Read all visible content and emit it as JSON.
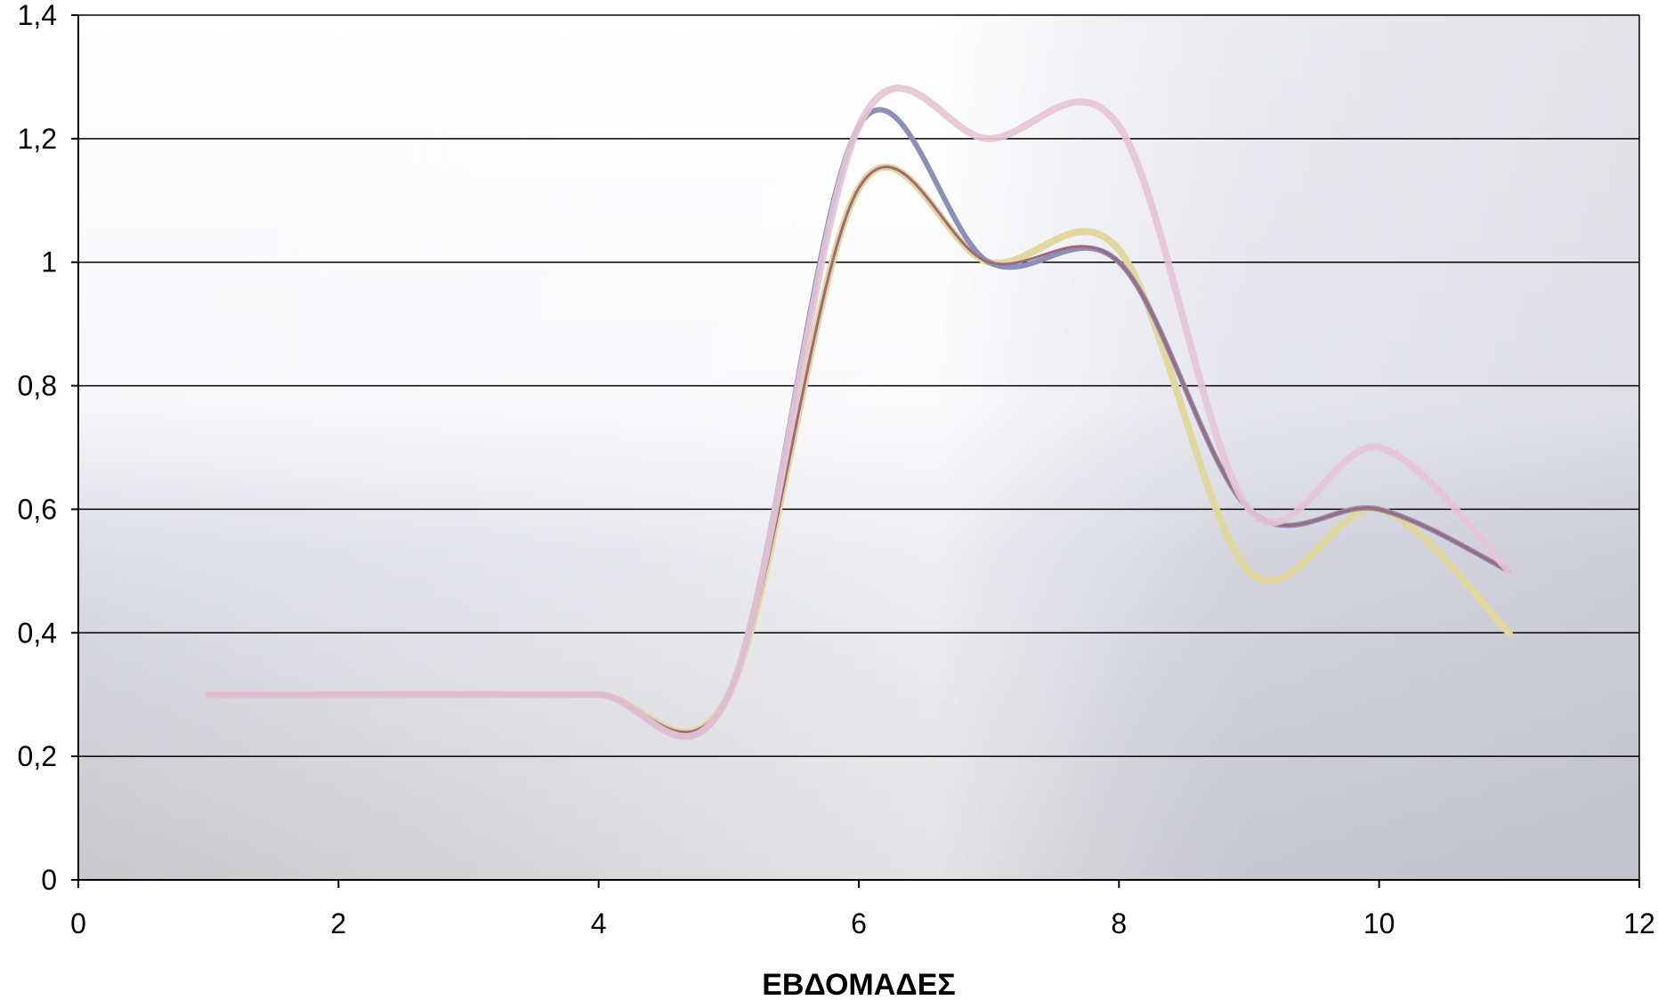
{
  "chart_data": {
    "type": "line",
    "xlabel": "ΕΒΔΟΜΑΔΕΣ",
    "ylabel": "",
    "xlim": [
      0,
      12
    ],
    "ylim": [
      0,
      1.4
    ],
    "x_ticks": [
      0,
      2,
      4,
      6,
      8,
      10,
      12
    ],
    "x_tick_labels": [
      "0",
      "2",
      "4",
      "6",
      "8",
      "10",
      "12"
    ],
    "y_ticks": [
      0,
      0.2,
      0.4,
      0.6,
      0.8,
      1,
      1.2,
      1.4
    ],
    "y_tick_labels": [
      "0",
      "0,2",
      "0,4",
      "0,6",
      "0,8",
      "1",
      "1,2",
      "1,4"
    ],
    "grid": true,
    "legend": "none",
    "series": [
      {
        "color": "#e2d89f",
        "x": [
          1,
          2,
          3,
          4,
          5,
          6,
          7,
          8,
          9,
          10,
          11
        ],
        "y": [
          0.3,
          0.3,
          0.3,
          0.3,
          0.3,
          1.12,
          1.0,
          1.02,
          0.5,
          0.6,
          0.4
        ]
      },
      {
        "color": "#8a90b8",
        "x": [
          1,
          2,
          3,
          4,
          5,
          6,
          7,
          8,
          9,
          10,
          11
        ],
        "y": [
          0.3,
          0.3,
          0.3,
          0.3,
          0.3,
          1.22,
          1.0,
          1.0,
          0.6,
          0.6,
          0.5
        ]
      },
      {
        "color": "#a0687a",
        "x": [
          1,
          2,
          3,
          4,
          5,
          6,
          7,
          8,
          9,
          10,
          11
        ],
        "y": [
          0.3,
          0.3,
          0.3,
          0.3,
          0.3,
          1.12,
          1.0,
          1.0,
          0.6,
          0.6,
          0.5
        ]
      },
      {
        "color": "#e6c4d6",
        "x": [
          1,
          2,
          3,
          4,
          5,
          6,
          7,
          8,
          9,
          10,
          11
        ],
        "y": [
          0.3,
          0.3,
          0.3,
          0.3,
          0.3,
          1.22,
          1.2,
          1.22,
          0.6,
          0.7,
          0.5
        ]
      }
    ]
  }
}
